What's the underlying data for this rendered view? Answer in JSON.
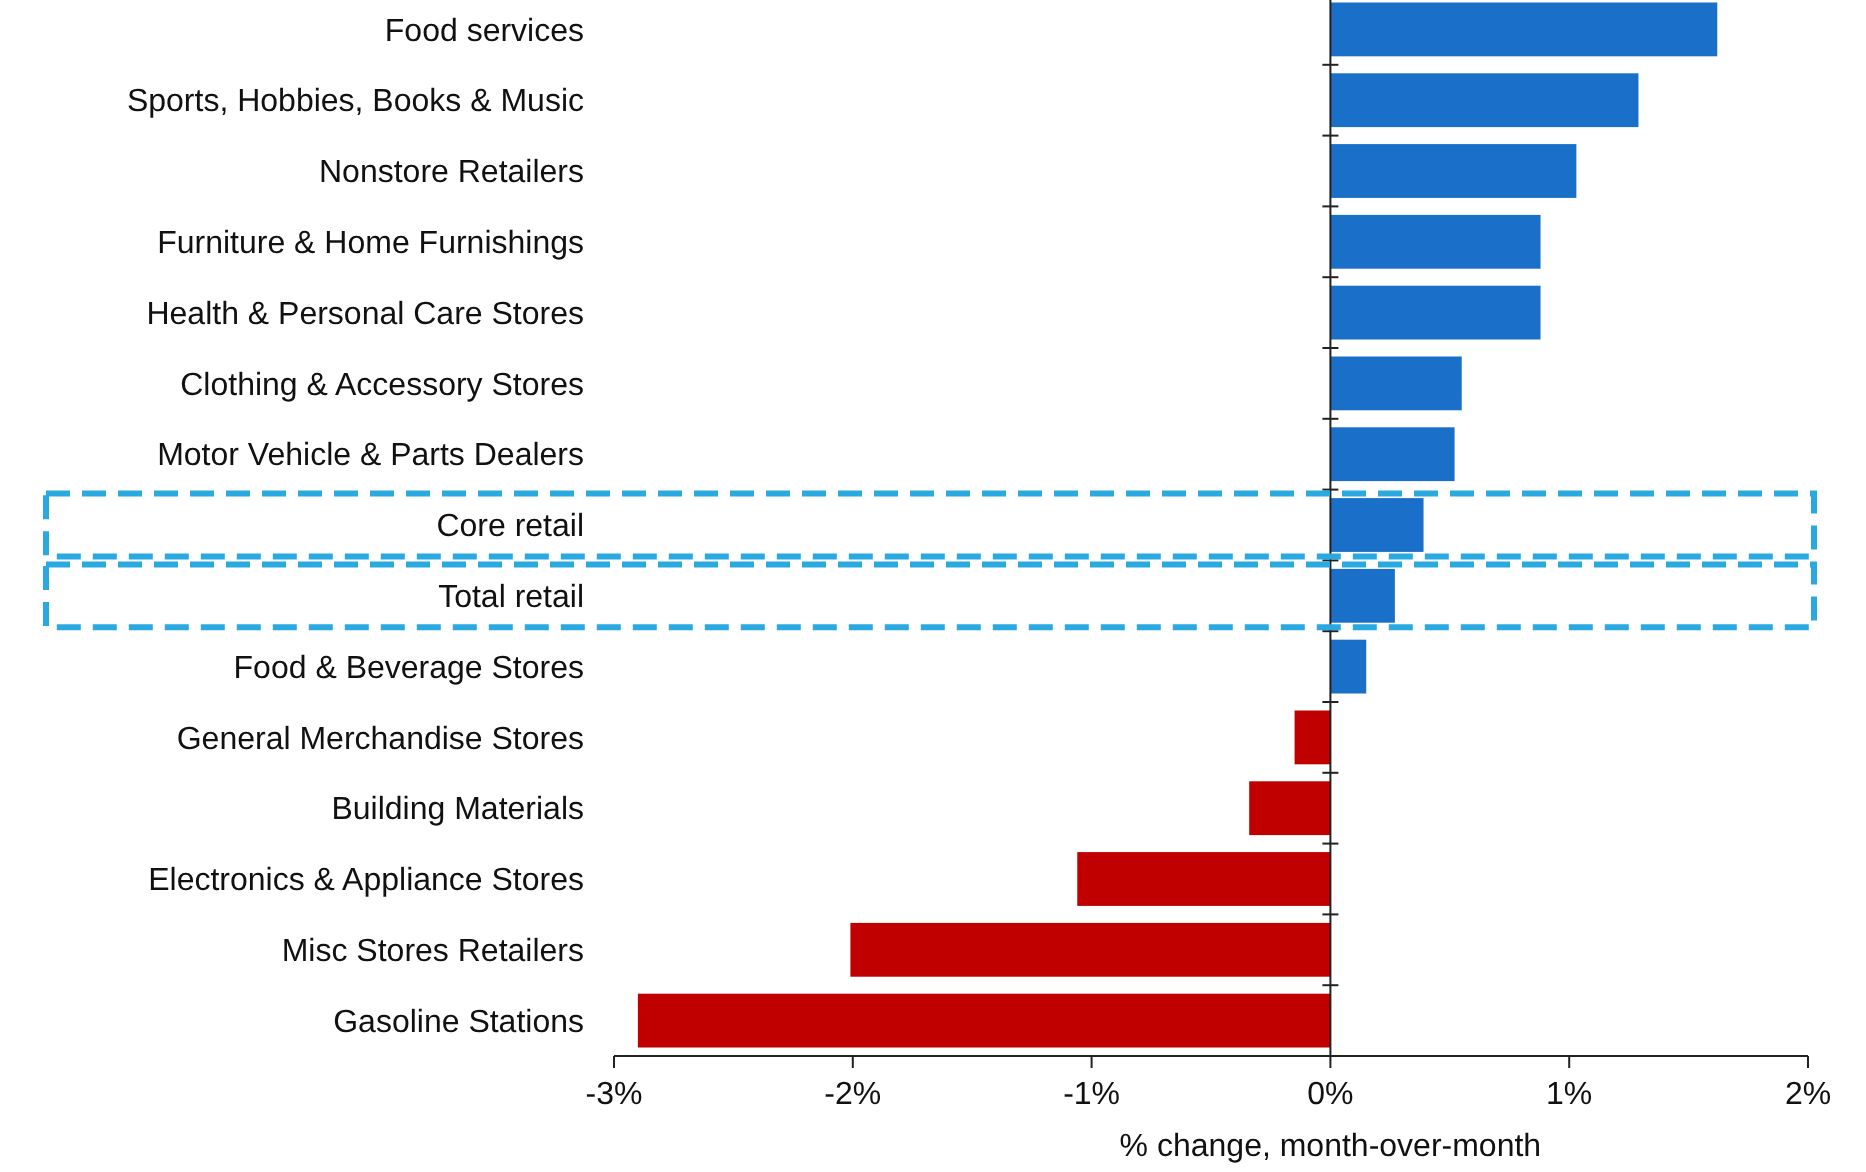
{
  "chart_data": {
    "type": "bar",
    "orientation": "horizontal",
    "xlabel": "% change, month-over-month",
    "categories": [
      "Food services",
      "Sports, Hobbies, Books & Music",
      "Nonstore Retailers",
      "Furniture & Home Furnishings",
      "Health & Personal Care Stores",
      "Clothing & Accessory Stores",
      "Motor Vehicle & Parts Dealers",
      "Core retail",
      "Total retail",
      "Food & Beverage Stores",
      "General Merchandise Stores",
      "Building Materials",
      "Electronics & Appliance Stores",
      "Misc Stores Retailers",
      "Gasoline Stations"
    ],
    "values": [
      1.62,
      1.29,
      1.03,
      0.88,
      0.88,
      0.55,
      0.52,
      0.39,
      0.27,
      0.15,
      -0.15,
      -0.34,
      -1.06,
      -2.01,
      -2.9
    ],
    "colors": [
      "#1a6fc9",
      "#1a6fc9",
      "#1a6fc9",
      "#1a6fc9",
      "#1a6fc9",
      "#1a6fc9",
      "#1a6fc9",
      "#1a6fc9",
      "#1a6fc9",
      "#1a6fc9",
      "#c00000",
      "#c00000",
      "#c00000",
      "#c00000",
      "#c00000"
    ],
    "xlim": [
      -3,
      2
    ],
    "xticks": [
      {
        "value": -3,
        "label": "-3%"
      },
      {
        "value": -2,
        "label": "-2%"
      },
      {
        "value": -1,
        "label": "-1%"
      },
      {
        "value": 0,
        "label": "0%"
      },
      {
        "value": 1,
        "label": "1%"
      },
      {
        "value": 2,
        "label": "2%"
      }
    ]
  }
}
